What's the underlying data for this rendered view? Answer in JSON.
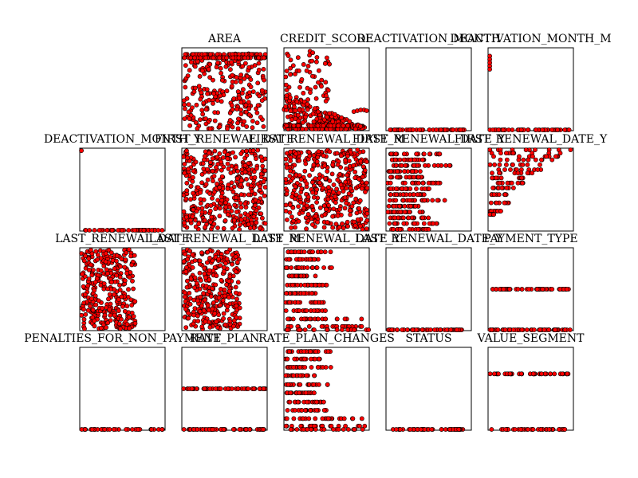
{
  "colors": {
    "marker_fill": "#ff0000",
    "marker_edge": "#000000",
    "frame": "#000000",
    "background": "#ffffff"
  },
  "chart_data": {
    "type": "scatter",
    "grid": false,
    "axes_ticks": false,
    "panels": [
      {
        "title": "",
        "ylim": [
          0,
          1
        ],
        "points": []
      },
      {
        "title": "AREA",
        "ylim": [
          0,
          1
        ],
        "points": []
      },
      {
        "title": "CREDIT_SCORE",
        "ylim": [
          0,
          1
        ],
        "points": []
      },
      {
        "title": "DEACTIVATION_MONTH",
        "ylim": [
          0,
          1
        ],
        "points": []
      },
      {
        "title": "DEACTIVATION_MONTH_M",
        "ylim": [
          0,
          1
        ],
        "points": []
      },
      {
        "title": "DEACTIVATION_MONTH_Y",
        "ylim": [
          0,
          1
        ],
        "points": []
      },
      {
        "title": "FIRST_RENEWAL_DATE",
        "ylim": [
          0,
          1
        ],
        "points": []
      },
      {
        "title": "FIRST_RENEWAL_DATE_M",
        "ylim": [
          0,
          1
        ],
        "points": []
      },
      {
        "title": "FIRST_RENEWAL_DATE_Y",
        "ylim": [
          0,
          1
        ],
        "points": []
      },
      {
        "title": "LAST_RENEWAL_DATE",
        "ylim": [
          0,
          1
        ],
        "points": []
      },
      {
        "title": "LAST_RENEWAL_DATE_M",
        "ylim": [
          0,
          1
        ],
        "points": []
      },
      {
        "title": "LAST_RENEWAL_DATE_Y",
        "ylim": [
          0,
          1
        ],
        "points": []
      },
      {
        "title": "PAYMENT_TYPE",
        "ylim": [
          0,
          1
        ],
        "points": []
      },
      {
        "title": "PENALTIES_FOR_NON_PAYMENT",
        "ylim": [
          0,
          1
        ],
        "points": []
      },
      {
        "title": "RATE_PLAN",
        "ylim": [
          0,
          1
        ],
        "points": []
      },
      {
        "title": "RATE_PLAN_CHANGES",
        "ylim": [
          0,
          1
        ],
        "points": []
      },
      {
        "title": "STATUS",
        "ylim": [
          0,
          1
        ],
        "points": []
      },
      {
        "title": "VALUE_SEGMENT",
        "ylim": [
          0,
          1
        ],
        "points": []
      }
    ]
  }
}
